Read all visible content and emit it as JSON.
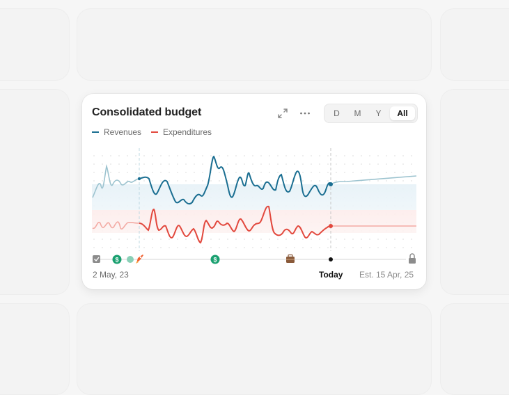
{
  "card": {
    "title": "Consolidated budget",
    "period_options": [
      "D",
      "M",
      "Y",
      "All"
    ],
    "selected_period": "All",
    "icons": [
      "expand-icon",
      "more-icon"
    ]
  },
  "legend": [
    {
      "name": "Revenues",
      "color": "#1a6e91"
    },
    {
      "name": "Expenditures",
      "color": "#e2483d"
    }
  ],
  "timeline": {
    "start_label": "2 May, 23",
    "today_label": "Today",
    "end_label": "Est. 15 Apr, 25",
    "events": [
      "checkbox-icon",
      "dollar-icon",
      "dollar-icon",
      "rocket-icon",
      "dollar-icon",
      "briefcase-icon",
      "today-dot-icon",
      "lock-icon"
    ]
  },
  "colors": {
    "revenues": "#1a6e91",
    "expenditures": "#e2483d",
    "revenues_faded": "#9cc3cf",
    "expenditures_faded": "#f3aaa3",
    "green_dollar": "#1aa070",
    "rocket": "#f06030",
    "briefcase": "#8a5a3a"
  }
}
